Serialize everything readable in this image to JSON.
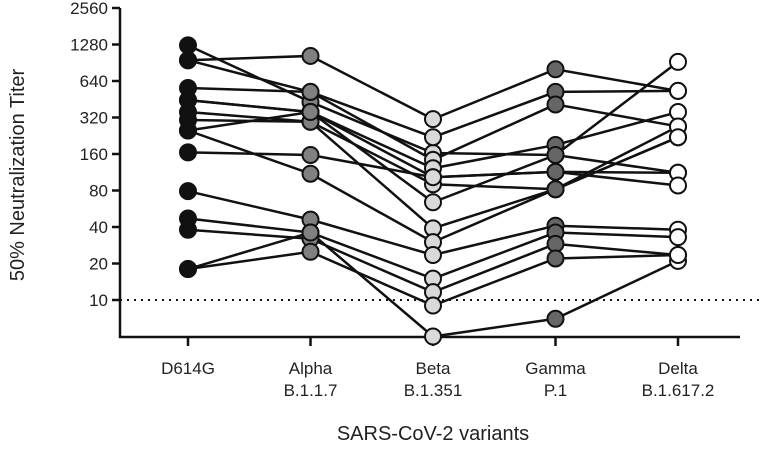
{
  "chart_data": {
    "type": "line",
    "title": "",
    "xlabel": "SARS-CoV-2 variants",
    "ylabel": "50% Neutralization Titer",
    "yscale": "log2",
    "ylim": [
      5,
      2560
    ],
    "yticks": [
      10,
      20,
      40,
      80,
      160,
      320,
      640,
      1280,
      2560
    ],
    "threshold": 10,
    "categories": [
      {
        "line1": "D614G",
        "line2": "",
        "color": "#111111"
      },
      {
        "line1": "Alpha",
        "line2": "B.1.1.7",
        "color": "#808080"
      },
      {
        "line1": "Beta",
        "line2": "B.1.351",
        "color": "#d9d9d9"
      },
      {
        "line1": "Gamma",
        "line2": "P.1",
        "color": "#666666"
      },
      {
        "line1": "Delta",
        "line2": "B.1.617.2",
        "color": "#ffffff"
      }
    ],
    "series": [
      {
        "values": [
          1260,
          430,
          163,
          157,
          112
        ]
      },
      {
        "values": [
          950,
          1030,
          310,
          800,
          530
        ]
      },
      {
        "values": [
          950,
          520,
          220,
          520,
          530
        ]
      },
      {
        "values": [
          560,
          520,
          143,
          410,
          270
        ]
      },
      {
        "values": [
          445,
          355,
          122,
          190,
          355
        ]
      },
      {
        "values": [
          445,
          355,
          103,
          114,
          112
        ]
      },
      {
        "values": [
          355,
          295,
          90,
          82,
          220
        ]
      },
      {
        "values": [
          305,
          295,
          39,
          82,
          270
        ]
      },
      {
        "values": [
          250,
          355,
          64,
          157,
          920
        ]
      },
      {
        "values": [
          165,
          157,
          103,
          114,
          88
        ]
      },
      {
        "values": [
          250,
          110,
          30,
          82,
          220
        ]
      },
      {
        "values": [
          79,
          46,
          23.5,
          41,
          38
        ]
      },
      {
        "values": [
          47,
          36,
          15,
          36,
          33
        ]
      },
      {
        "values": [
          38,
          32,
          11.6,
          29,
          23.5
        ]
      },
      {
        "values": [
          18,
          36,
          5,
          7,
          21
        ]
      },
      {
        "values": [
          18,
          25,
          9,
          22,
          23.5
        ]
      }
    ]
  }
}
